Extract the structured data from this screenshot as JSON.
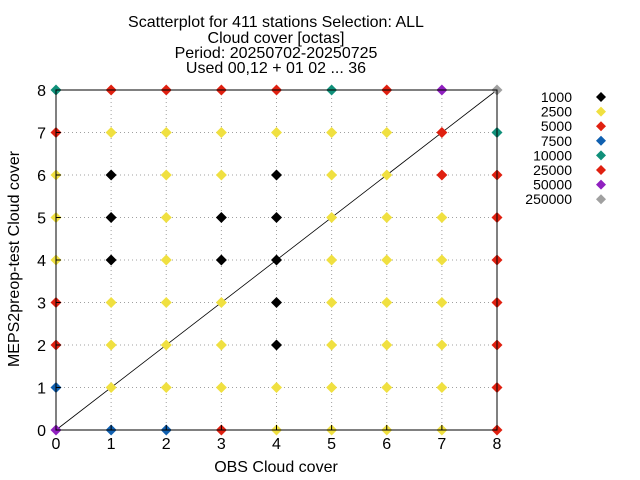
{
  "chart_data": {
    "type": "scatter",
    "title_lines": [
      "Scatterplot for  411 stations Selection: ALL",
      "Cloud cover [octas]",
      "Period: 20250702-20250725",
      "Used 00,12 + 01 02 ... 36"
    ],
    "xlabel": "OBS Cloud cover",
    "ylabel": "MEPS2preop-test Cloud cover",
    "xlim": [
      0,
      8
    ],
    "ylim": [
      0,
      8
    ],
    "xticks": [
      "0",
      "1",
      "2",
      "3",
      "4",
      "5",
      "6",
      "7",
      "8"
    ],
    "yticks": [
      "0",
      "1",
      "2",
      "3",
      "4",
      "5",
      "6",
      "7",
      "8"
    ],
    "grid": true,
    "diagonal": true,
    "marker": "diamond",
    "legend_position": "right",
    "legend": [
      {
        "label": "1000",
        "color": "#000000"
      },
      {
        "label": "2500",
        "color": "#f0e040"
      },
      {
        "label": "5000",
        "color": "#e02010"
      },
      {
        "label": "7500",
        "color": "#1060b0"
      },
      {
        "label": "10000",
        "color": "#10907a"
      },
      {
        "label": "25000",
        "color": "#e02010"
      },
      {
        "label": "50000",
        "color": "#9020c0"
      },
      {
        "label": "250000",
        "color": "#a0a0a0"
      }
    ],
    "points": [
      {
        "x": 0,
        "y": 0,
        "c": "#9020c0"
      },
      {
        "x": 1,
        "y": 0,
        "c": "#1060b0"
      },
      {
        "x": 2,
        "y": 0,
        "c": "#1060b0"
      },
      {
        "x": 3,
        "y": 0,
        "c": "#e02010"
      },
      {
        "x": 4,
        "y": 0,
        "c": "#f0e040"
      },
      {
        "x": 5,
        "y": 0,
        "c": "#f0e040"
      },
      {
        "x": 6,
        "y": 0,
        "c": "#f0e040"
      },
      {
        "x": 7,
        "y": 0,
        "c": "#f0e040"
      },
      {
        "x": 8,
        "y": 0,
        "c": "#e02010"
      },
      {
        "x": 0,
        "y": 1,
        "c": "#1060b0"
      },
      {
        "x": 1,
        "y": 1,
        "c": "#f0e040"
      },
      {
        "x": 2,
        "y": 1,
        "c": "#f0e040"
      },
      {
        "x": 3,
        "y": 1,
        "c": "#f0e040"
      },
      {
        "x": 4,
        "y": 1,
        "c": "#f0e040"
      },
      {
        "x": 5,
        "y": 1,
        "c": "#f0e040"
      },
      {
        "x": 6,
        "y": 1,
        "c": "#f0e040"
      },
      {
        "x": 7,
        "y": 1,
        "c": "#f0e040"
      },
      {
        "x": 8,
        "y": 1,
        "c": "#e02010"
      },
      {
        "x": 0,
        "y": 2,
        "c": "#e02010"
      },
      {
        "x": 1,
        "y": 2,
        "c": "#f0e040"
      },
      {
        "x": 2,
        "y": 2,
        "c": "#f0e040"
      },
      {
        "x": 3,
        "y": 2,
        "c": "#f0e040"
      },
      {
        "x": 4,
        "y": 2,
        "c": "#000000"
      },
      {
        "x": 5,
        "y": 2,
        "c": "#f0e040"
      },
      {
        "x": 6,
        "y": 2,
        "c": "#f0e040"
      },
      {
        "x": 7,
        "y": 2,
        "c": "#f0e040"
      },
      {
        "x": 8,
        "y": 2,
        "c": "#e02010"
      },
      {
        "x": 0,
        "y": 3,
        "c": "#e02010"
      },
      {
        "x": 1,
        "y": 3,
        "c": "#f0e040"
      },
      {
        "x": 2,
        "y": 3,
        "c": "#f0e040"
      },
      {
        "x": 3,
        "y": 3,
        "c": "#f0e040"
      },
      {
        "x": 4,
        "y": 3,
        "c": "#000000"
      },
      {
        "x": 5,
        "y": 3,
        "c": "#f0e040"
      },
      {
        "x": 6,
        "y": 3,
        "c": "#f0e040"
      },
      {
        "x": 7,
        "y": 3,
        "c": "#f0e040"
      },
      {
        "x": 8,
        "y": 3,
        "c": "#e02010"
      },
      {
        "x": 0,
        "y": 4,
        "c": "#f0e040"
      },
      {
        "x": 1,
        "y": 4,
        "c": "#000000"
      },
      {
        "x": 2,
        "y": 4,
        "c": "#f0e040"
      },
      {
        "x": 3,
        "y": 4,
        "c": "#000000"
      },
      {
        "x": 4,
        "y": 4,
        "c": "#000000"
      },
      {
        "x": 5,
        "y": 4,
        "c": "#f0e040"
      },
      {
        "x": 6,
        "y": 4,
        "c": "#f0e040"
      },
      {
        "x": 7,
        "y": 4,
        "c": "#f0e040"
      },
      {
        "x": 8,
        "y": 4,
        "c": "#e02010"
      },
      {
        "x": 0,
        "y": 5,
        "c": "#f0e040"
      },
      {
        "x": 1,
        "y": 5,
        "c": "#000000"
      },
      {
        "x": 2,
        "y": 5,
        "c": "#f0e040"
      },
      {
        "x": 3,
        "y": 5,
        "c": "#000000"
      },
      {
        "x": 4,
        "y": 5,
        "c": "#000000"
      },
      {
        "x": 5,
        "y": 5,
        "c": "#f0e040"
      },
      {
        "x": 6,
        "y": 5,
        "c": "#f0e040"
      },
      {
        "x": 7,
        "y": 5,
        "c": "#f0e040"
      },
      {
        "x": 8,
        "y": 5,
        "c": "#e02010"
      },
      {
        "x": 0,
        "y": 6,
        "c": "#f0e040"
      },
      {
        "x": 1,
        "y": 6,
        "c": "#000000"
      },
      {
        "x": 2,
        "y": 6,
        "c": "#f0e040"
      },
      {
        "x": 3,
        "y": 6,
        "c": "#f0e040"
      },
      {
        "x": 4,
        "y": 6,
        "c": "#000000"
      },
      {
        "x": 5,
        "y": 6,
        "c": "#f0e040"
      },
      {
        "x": 6,
        "y": 6,
        "c": "#f0e040"
      },
      {
        "x": 7,
        "y": 6,
        "c": "#e02010"
      },
      {
        "x": 8,
        "y": 6,
        "c": "#e02010"
      },
      {
        "x": 0,
        "y": 7,
        "c": "#e02010"
      },
      {
        "x": 1,
        "y": 7,
        "c": "#f0e040"
      },
      {
        "x": 2,
        "y": 7,
        "c": "#f0e040"
      },
      {
        "x": 3,
        "y": 7,
        "c": "#f0e040"
      },
      {
        "x": 4,
        "y": 7,
        "c": "#f0e040"
      },
      {
        "x": 5,
        "y": 7,
        "c": "#f0e040"
      },
      {
        "x": 6,
        "y": 7,
        "c": "#f0e040"
      },
      {
        "x": 7,
        "y": 7,
        "c": "#e02010"
      },
      {
        "x": 8,
        "y": 7,
        "c": "#10907a"
      },
      {
        "x": 0,
        "y": 8,
        "c": "#10907a"
      },
      {
        "x": 1,
        "y": 8,
        "c": "#e02010"
      },
      {
        "x": 2,
        "y": 8,
        "c": "#e02010"
      },
      {
        "x": 3,
        "y": 8,
        "c": "#e02010"
      },
      {
        "x": 4,
        "y": 8,
        "c": "#e02010"
      },
      {
        "x": 5,
        "y": 8,
        "c": "#10907a"
      },
      {
        "x": 6,
        "y": 8,
        "c": "#e02010"
      },
      {
        "x": 7,
        "y": 8,
        "c": "#9020c0"
      },
      {
        "x": 8,
        "y": 8,
        "c": "#a0a0a0"
      }
    ]
  }
}
